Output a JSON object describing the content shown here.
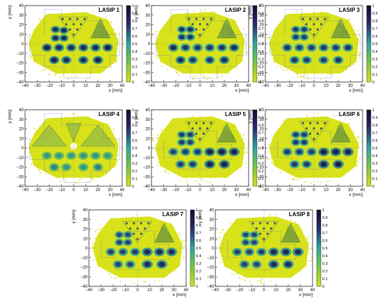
{
  "chart_data": [
    {
      "type": "heatmap",
      "title": "LASIP 1",
      "xlabel": "x [mm]",
      "ylabel": "y [mm]",
      "xlim": [
        -40,
        40
      ],
      "ylim": [
        -40,
        40
      ],
      "x_ticks": [
        "−40",
        "−30",
        "−20",
        "−10",
        "0",
        "10",
        "20",
        "30",
        "40"
      ],
      "y_ticks": [
        "−40",
        "−30",
        "−20",
        "−10",
        "0",
        "10",
        "20",
        "30",
        "40"
      ],
      "colorbar": {
        "min": 0,
        "max": 1,
        "ticks": [
          "0",
          "0.1",
          "0.2",
          "0.3",
          "0.4",
          "0.5",
          "0.6",
          "0.7",
          "0.8",
          "0.9",
          "1"
        ]
      },
      "segment_outline": "outer",
      "spots": [
        {
          "x": -15,
          "y": 15,
          "r": 3.8,
          "v": 0.9
        },
        {
          "x": -8,
          "y": 14,
          "r": 3.8,
          "v": 0.9
        },
        {
          "x": -15,
          "y": 6,
          "r": 3.8,
          "v": 0.9
        },
        {
          "x": -8,
          "y": 6,
          "r": 3.8,
          "v": 0.9
        },
        {
          "x": -22,
          "y": -4,
          "r": 4.2,
          "v": 0.95
        },
        {
          "x": -12,
          "y": -4,
          "r": 4.2,
          "v": 0.9
        },
        {
          "x": -2,
          "y": -4,
          "r": 4.2,
          "v": 0.9
        },
        {
          "x": 8,
          "y": -4,
          "r": 4.2,
          "v": 0.9
        },
        {
          "x": 18,
          "y": -4,
          "r": 4.2,
          "v": 0.9
        },
        {
          "x": 28,
          "y": -4,
          "r": 4.2,
          "v": 0.95
        },
        {
          "x": -16,
          "y": -17,
          "r": 4.2,
          "v": 0.95
        },
        {
          "x": -6,
          "y": -17,
          "r": 4.2,
          "v": 0.9
        },
        {
          "x": 8,
          "y": -17,
          "r": 4.2,
          "v": 0.9
        },
        {
          "x": 20,
          "y": -17,
          "r": 4.2,
          "v": 0.95
        }
      ]
    },
    {
      "type": "heatmap",
      "title": "LASIP 2",
      "xlabel": "x [mm]",
      "ylabel": "y [mm]",
      "xlim": [
        -40,
        40
      ],
      "ylim": [
        -40,
        40
      ],
      "x_ticks": [
        "−40",
        "−30",
        "−20",
        "−10",
        "0",
        "10",
        "20",
        "30",
        "40"
      ],
      "y_ticks": [
        "−40",
        "−30",
        "−20",
        "−10",
        "0",
        "10",
        "20",
        "30",
        "40"
      ],
      "colorbar": {
        "min": 0,
        "max": 1,
        "ticks": [
          "0",
          "0.1",
          "0.2",
          "0.3",
          "0.4",
          "0.5",
          "0.6",
          "0.7",
          "0.8",
          "0.9",
          "1"
        ]
      },
      "segment_outline": "outer",
      "spots": [
        {
          "x": -15,
          "y": 15,
          "r": 3.8,
          "v": 0.85
        },
        {
          "x": -8,
          "y": 15,
          "r": 3.8,
          "v": 0.85
        },
        {
          "x": -15,
          "y": 7,
          "r": 3.8,
          "v": 0.85
        },
        {
          "x": -8,
          "y": 7,
          "r": 3.8,
          "v": 0.85
        },
        {
          "x": -22,
          "y": -4,
          "r": 4.2,
          "v": 0.9
        },
        {
          "x": -12,
          "y": -4,
          "r": 4.2,
          "v": 0.85
        },
        {
          "x": -2,
          "y": -4,
          "r": 4.2,
          "v": 0.85
        },
        {
          "x": 8,
          "y": -4,
          "r": 4.2,
          "v": 0.85
        },
        {
          "x": 18,
          "y": -4,
          "r": 4.2,
          "v": 0.85
        },
        {
          "x": 28,
          "y": -4,
          "r": 4.2,
          "v": 0.9
        },
        {
          "x": -16,
          "y": -17,
          "r": 4.2,
          "v": 0.9
        },
        {
          "x": -6,
          "y": -17,
          "r": 4.2,
          "v": 0.85
        },
        {
          "x": 8,
          "y": -17,
          "r": 4.2,
          "v": 0.85
        },
        {
          "x": 20,
          "y": -17,
          "r": 4.2,
          "v": 0.9
        }
      ]
    },
    {
      "type": "heatmap",
      "title": "LASIP 3",
      "xlabel": "x [mm]",
      "ylabel": "y [mm]",
      "xlim": [
        -40,
        40
      ],
      "ylim": [
        -40,
        40
      ],
      "x_ticks": [
        "−40",
        "−30",
        "−20",
        "−10",
        "0",
        "10",
        "20",
        "30",
        "40"
      ],
      "y_ticks": [
        "−40",
        "−30",
        "−20",
        "−10",
        "0",
        "10",
        "20",
        "30",
        "40"
      ],
      "colorbar": {
        "min": 0,
        "max": 1,
        "ticks": [
          "0",
          "0.1",
          "0.2",
          "0.3",
          "0.4",
          "0.5",
          "0.6",
          "0.7",
          "0.8",
          "0.9",
          "1"
        ]
      },
      "segment_outline": "outer",
      "spots": [
        {
          "x": -15,
          "y": 15,
          "r": 3.8,
          "v": 0.8
        },
        {
          "x": -8,
          "y": 15,
          "r": 3.8,
          "v": 0.8
        },
        {
          "x": -15,
          "y": 7,
          "r": 3.8,
          "v": 0.8
        },
        {
          "x": -8,
          "y": 7,
          "r": 3.8,
          "v": 0.8
        },
        {
          "x": -22,
          "y": -4,
          "r": 4.2,
          "v": 0.85
        },
        {
          "x": -12,
          "y": -4,
          "r": 4.2,
          "v": 0.8
        },
        {
          "x": -2,
          "y": -4,
          "r": 4.2,
          "v": 0.8
        },
        {
          "x": 8,
          "y": -4,
          "r": 4.2,
          "v": 0.8
        },
        {
          "x": 18,
          "y": -4,
          "r": 4.2,
          "v": 0.8
        },
        {
          "x": 28,
          "y": -4,
          "r": 4.2,
          "v": 0.85
        },
        {
          "x": -16,
          "y": -17,
          "r": 4.2,
          "v": 0.85
        },
        {
          "x": -6,
          "y": -17,
          "r": 4.2,
          "v": 0.8
        },
        {
          "x": 8,
          "y": -17,
          "r": 4.2,
          "v": 0.8
        },
        {
          "x": 20,
          "y": -17,
          "r": 4.2,
          "v": 0.85
        }
      ]
    },
    {
      "type": "heatmap",
      "title": "LASIP 4",
      "xlabel": "x [mm]",
      "ylabel": "y [mm]",
      "xlim": [
        -40,
        40
      ],
      "ylim": [
        -40,
        40
      ],
      "x_ticks": [
        "−40",
        "−30",
        "−20",
        "−10",
        "0",
        "10",
        "20",
        "30",
        "40"
      ],
      "y_ticks": [
        "−40",
        "−30",
        "−20",
        "−10",
        "0",
        "10",
        "20",
        "30",
        "40"
      ],
      "colorbar": {
        "min": 0,
        "max": 1,
        "ticks": [
          "0",
          "0.1",
          "0.2",
          "0.3",
          "0.4",
          "0.5",
          "0.6",
          "0.7",
          "0.8",
          "0.9",
          "1"
        ]
      },
      "segment_outline": "outer",
      "spots": [
        {
          "x": -22,
          "y": -8,
          "r": 4.2,
          "v": 0.55
        },
        {
          "x": -12,
          "y": -8,
          "r": 4.2,
          "v": 0.55
        },
        {
          "x": -2,
          "y": -8,
          "r": 4.2,
          "v": 0.55
        },
        {
          "x": 8,
          "y": -8,
          "r": 4.2,
          "v": 0.55
        },
        {
          "x": 18,
          "y": -8,
          "r": 4.2,
          "v": 0.55
        },
        {
          "x": 28,
          "y": -8,
          "r": 4.2,
          "v": 0.55
        },
        {
          "x": -16,
          "y": -20,
          "r": 4.2,
          "v": 0.6
        },
        {
          "x": -6,
          "y": -20,
          "r": 4.2,
          "v": 0.55
        },
        {
          "x": 8,
          "y": -20,
          "r": 4.2,
          "v": 0.55
        },
        {
          "x": 20,
          "y": -20,
          "r": 4.2,
          "v": 0.6
        }
      ]
    },
    {
      "type": "heatmap",
      "title": "LASIP 5",
      "xlabel": "x [mm]",
      "ylabel": "y [mm]",
      "xlim": [
        -40,
        40
      ],
      "ylim": [
        -40,
        40
      ],
      "x_ticks": [
        "−40",
        "−30",
        "−20",
        "−10",
        "0",
        "10",
        "20",
        "30",
        "40"
      ],
      "y_ticks": [
        "−40",
        "−30",
        "−20",
        "−10",
        "0",
        "10",
        "20",
        "30",
        "40"
      ],
      "colorbar": {
        "min": 0,
        "max": 1,
        "ticks": [
          "0",
          "0.1",
          "0.2",
          "0.3",
          "0.4",
          "0.5",
          "0.6",
          "0.7",
          "0.8",
          "0.9",
          "1"
        ]
      },
      "segment_outline": "inner",
      "spots": [
        {
          "x": -15,
          "y": 14,
          "r": 3.8,
          "v": 0.8
        },
        {
          "x": -8,
          "y": 14,
          "r": 3.8,
          "v": 0.8
        },
        {
          "x": -15,
          "y": 6,
          "r": 3.8,
          "v": 0.8
        },
        {
          "x": -8,
          "y": 6,
          "r": 3.8,
          "v": 0.8
        },
        {
          "x": -22,
          "y": -4,
          "r": 4.2,
          "v": 0.75
        },
        {
          "x": -12,
          "y": -4,
          "r": 4.2,
          "v": 0.8
        },
        {
          "x": -2,
          "y": -4,
          "r": 4.2,
          "v": 0.8
        },
        {
          "x": 8,
          "y": -4,
          "r": 4.5,
          "v": 0.95
        },
        {
          "x": 18,
          "y": -4,
          "r": 4.5,
          "v": 0.95
        },
        {
          "x": 28,
          "y": -4,
          "r": 4.5,
          "v": 0.95
        },
        {
          "x": -16,
          "y": -17,
          "r": 4.2,
          "v": 0.8
        },
        {
          "x": -6,
          "y": -17,
          "r": 4.2,
          "v": 0.8
        },
        {
          "x": 8,
          "y": -17,
          "r": 4.5,
          "v": 0.95
        },
        {
          "x": 20,
          "y": -17,
          "r": 4.5,
          "v": 0.95
        }
      ]
    },
    {
      "type": "heatmap",
      "title": "LASIP 6",
      "xlabel": "x [mm]",
      "ylabel": "y [mm]",
      "xlim": [
        -40,
        40
      ],
      "ylim": [
        -40,
        40
      ],
      "x_ticks": [
        "−40",
        "−30",
        "−20",
        "−10",
        "0",
        "10",
        "20",
        "30",
        "40"
      ],
      "y_ticks": [
        "−40",
        "−30",
        "−20",
        "−10",
        "0",
        "10",
        "20",
        "30",
        "40"
      ],
      "colorbar": {
        "min": 0,
        "max": 1,
        "ticks": [
          "0",
          "0.1",
          "0.2",
          "0.3",
          "0.4",
          "0.5",
          "0.6",
          "0.7",
          "0.8",
          "0.9",
          "1"
        ]
      },
      "segment_outline": "inner",
      "spots": [
        {
          "x": -15,
          "y": 14,
          "r": 3.8,
          "v": 0.8
        },
        {
          "x": -8,
          "y": 14,
          "r": 3.8,
          "v": 0.8
        },
        {
          "x": -15,
          "y": 6,
          "r": 3.8,
          "v": 0.8
        },
        {
          "x": -8,
          "y": 6,
          "r": 3.8,
          "v": 0.8
        },
        {
          "x": -22,
          "y": -4,
          "r": 4.2,
          "v": 0.8
        },
        {
          "x": -12,
          "y": -4,
          "r": 4.2,
          "v": 0.8
        },
        {
          "x": -2,
          "y": -4,
          "r": 4.2,
          "v": 0.8
        },
        {
          "x": 8,
          "y": -4,
          "r": 4.5,
          "v": 0.95
        },
        {
          "x": 18,
          "y": -4,
          "r": 4.5,
          "v": 0.95
        },
        {
          "x": 28,
          "y": -4,
          "r": 4.5,
          "v": 0.95
        },
        {
          "x": -16,
          "y": -17,
          "r": 4.2,
          "v": 0.8
        },
        {
          "x": -6,
          "y": -17,
          "r": 4.2,
          "v": 0.8
        },
        {
          "x": 8,
          "y": -17,
          "r": 4.5,
          "v": 0.95
        },
        {
          "x": 20,
          "y": -17,
          "r": 4.5,
          "v": 0.95
        }
      ]
    },
    {
      "type": "heatmap",
      "title": "LASIP 7",
      "xlabel": "x [mm]",
      "ylabel": "y [mm]",
      "xlim": [
        -40,
        40
      ],
      "ylim": [
        -40,
        40
      ],
      "x_ticks": [
        "−40",
        "−30",
        "−20",
        "−10",
        "0",
        "10",
        "20",
        "30",
        "40"
      ],
      "y_ticks": [
        "−40",
        "−30",
        "−20",
        "−10",
        "0",
        "10",
        "20",
        "30",
        "40"
      ],
      "colorbar": {
        "min": 0,
        "max": 1,
        "ticks": [
          "0",
          "0.1",
          "0.2",
          "0.3",
          "0.4",
          "0.5",
          "0.6",
          "0.7",
          "0.8",
          "0.9",
          "1"
        ]
      },
      "segment_outline": "inner",
      "spots": [
        {
          "x": -15,
          "y": 14,
          "r": 3.8,
          "v": 0.75
        },
        {
          "x": -8,
          "y": 14,
          "r": 3.8,
          "v": 0.75
        },
        {
          "x": -15,
          "y": 6,
          "r": 3.8,
          "v": 0.75
        },
        {
          "x": -8,
          "y": 6,
          "r": 3.8,
          "v": 0.75
        },
        {
          "x": -22,
          "y": -4,
          "r": 4.2,
          "v": 0.75
        },
        {
          "x": -12,
          "y": -4,
          "r": 4.2,
          "v": 0.75
        },
        {
          "x": -2,
          "y": -4,
          "r": 4.2,
          "v": 0.8
        },
        {
          "x": 8,
          "y": -4,
          "r": 4.5,
          "v": 0.9
        },
        {
          "x": 18,
          "y": -4,
          "r": 4.5,
          "v": 0.9
        },
        {
          "x": 28,
          "y": -4,
          "r": 4.5,
          "v": 0.9
        },
        {
          "x": -16,
          "y": -17,
          "r": 4.2,
          "v": 0.75
        },
        {
          "x": -6,
          "y": -17,
          "r": 4.2,
          "v": 0.75
        },
        {
          "x": 8,
          "y": -17,
          "r": 4.5,
          "v": 0.9
        },
        {
          "x": 20,
          "y": -17,
          "r": 4.5,
          "v": 0.9
        }
      ]
    },
    {
      "type": "heatmap",
      "title": "LASIP 8",
      "xlabel": "x [mm]",
      "ylabel": "y [mm]",
      "xlim": [
        -40,
        40
      ],
      "ylim": [
        -40,
        40
      ],
      "x_ticks": [
        "−40",
        "−30",
        "−20",
        "−10",
        "0",
        "10",
        "20",
        "30",
        "40"
      ],
      "y_ticks": [
        "−40",
        "−30",
        "−20",
        "−10",
        "0",
        "10",
        "20",
        "30",
        "40"
      ],
      "colorbar": {
        "min": 0,
        "max": 1,
        "ticks": [
          "0",
          "0.1",
          "0.2",
          "0.3",
          "0.4",
          "0.5",
          "0.6",
          "0.7",
          "0.8",
          "0.9",
          "1"
        ]
      },
      "segment_outline": "inner",
      "spots": [
        {
          "x": -15,
          "y": 14,
          "r": 3.8,
          "v": 0.75
        },
        {
          "x": -8,
          "y": 14,
          "r": 3.8,
          "v": 0.75
        },
        {
          "x": -15,
          "y": 6,
          "r": 3.8,
          "v": 0.75
        },
        {
          "x": -8,
          "y": 6,
          "r": 3.8,
          "v": 0.75
        },
        {
          "x": -22,
          "y": -4,
          "r": 4.2,
          "v": 0.75
        },
        {
          "x": -12,
          "y": -4,
          "r": 4.2,
          "v": 0.75
        },
        {
          "x": -2,
          "y": -4,
          "r": 4.2,
          "v": 0.8
        },
        {
          "x": 8,
          "y": -4,
          "r": 4.5,
          "v": 0.9
        },
        {
          "x": 18,
          "y": -4,
          "r": 4.5,
          "v": 0.9
        },
        {
          "x": 28,
          "y": -4,
          "r": 4.5,
          "v": 0.9
        },
        {
          "x": -16,
          "y": -17,
          "r": 4.2,
          "v": 0.75
        },
        {
          "x": -6,
          "y": -17,
          "r": 4.2,
          "v": 0.75
        },
        {
          "x": 8,
          "y": -17,
          "r": 4.5,
          "v": 0.9
        },
        {
          "x": 20,
          "y": -17,
          "r": 4.5,
          "v": 0.9
        }
      ]
    }
  ],
  "colors": {
    "low": "#d7e21a",
    "mid": "#2fa6a0",
    "high": "#2b2d6e",
    "max": "#140b34",
    "outline": "#5a5ad8"
  }
}
